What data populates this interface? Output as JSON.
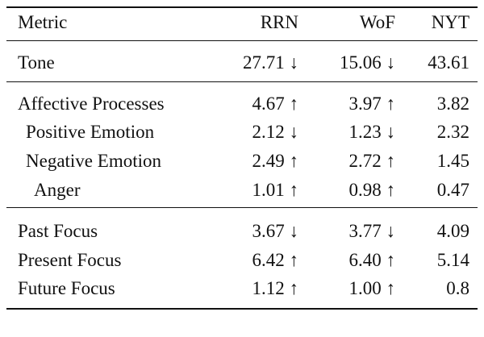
{
  "table": {
    "header": [
      "Metric",
      "RRN",
      "WoF",
      "NYT"
    ],
    "rows": [
      [
        "Tone",
        "27.71 ↓",
        "15.06 ↓",
        "43.61"
      ],
      [
        "Affective Processes",
        "4.67 ↑",
        "3.97 ↑",
        "3.82"
      ],
      [
        "Positive Emotion",
        "2.12 ↓",
        "1.23 ↓",
        "2.32"
      ],
      [
        "Negative Emotion",
        "2.49 ↑",
        "2.72 ↑",
        "1.45"
      ],
      [
        "Anger",
        "1.01 ↑",
        "0.98 ↑",
        "0.47"
      ],
      [
        "Past Focus",
        "3.67 ↓",
        "3.77 ↓",
        "4.09"
      ],
      [
        "Present Focus",
        "6.42 ↑",
        "6.40 ↑",
        "5.14"
      ],
      [
        "Future Focus",
        "1.12 ↑",
        "1.00 ↑",
        "0.8"
      ]
    ]
  }
}
